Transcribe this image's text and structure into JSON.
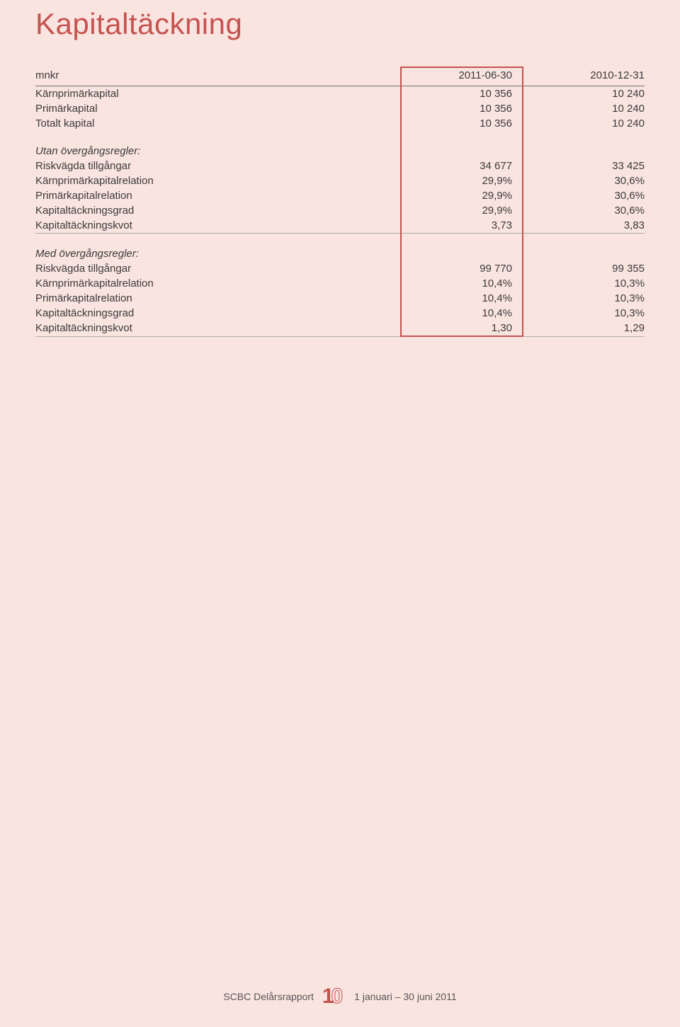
{
  "title": "Kapitaltäckning",
  "headers": {
    "unit": "mnkr",
    "col_a": "2011-06-30",
    "col_b": "2010-12-31"
  },
  "block1": {
    "rows": [
      {
        "label": "Kärnprimärkapital",
        "a": "10 356",
        "b": "10 240"
      },
      {
        "label": "Primärkapital",
        "a": "10 356",
        "b": "10 240"
      },
      {
        "label": "Totalt kapital",
        "a": "10 356",
        "b": "10 240"
      }
    ]
  },
  "section_utan": {
    "heading": "Utan övergångsregler:",
    "rows": [
      {
        "label": "Riskvägda tillgångar",
        "a": "34 677",
        "b": "33 425"
      },
      {
        "label": "Kärnprimärkapitalrelation",
        "a": "29,9%",
        "b": "30,6%"
      },
      {
        "label": "Primärkapitalrelation",
        "a": "29,9%",
        "b": "30,6%"
      },
      {
        "label": "Kapitaltäckningsgrad",
        "a": "29,9%",
        "b": "30,6%"
      },
      {
        "label": "Kapitaltäckningskvot",
        "a": "3,73",
        "b": "3,83"
      }
    ]
  },
  "section_med": {
    "heading": "Med övergångsregler:",
    "rows": [
      {
        "label": "Riskvägda tillgångar",
        "a": "99 770",
        "b": "99 355"
      },
      {
        "label": "Kärnprimärkapitalrelation",
        "a": "10,4%",
        "b": "10,3%"
      },
      {
        "label": "Primärkapitalrelation",
        "a": "10,4%",
        "b": "10,3%"
      },
      {
        "label": "Kapitaltäckningsgrad",
        "a": "10,4%",
        "b": "10,3%"
      },
      {
        "label": "Kapitaltäckningskvot",
        "a": "1,30",
        "b": "1,29"
      }
    ]
  },
  "footer": {
    "left": "SCBC Delårsrapport",
    "page": "10",
    "right": "1 januari – 30 juni 2011"
  },
  "colors": {
    "background": "#fae4e0",
    "accent": "#c5534f",
    "text": "#3a3a3a",
    "rule_strong": "#6b6b6b",
    "rule_thin": "#aaaaaa"
  }
}
